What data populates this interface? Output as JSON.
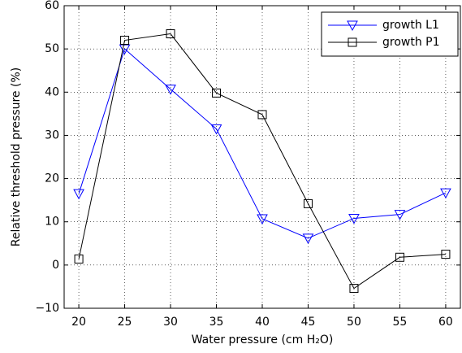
{
  "chart_data": {
    "type": "line",
    "x_label": "Water pressure (cm H₂O)",
    "y_label": "Relative threshold pressure (%)",
    "x": [
      20,
      25,
      30,
      35,
      40,
      45,
      50,
      55,
      60
    ],
    "series": [
      {
        "name": "growth L1",
        "color": "#0000ff",
        "marker": "triangle-down",
        "values": [
          16.5,
          50,
          40.7,
          31.5,
          10.7,
          6.2,
          10.8,
          11.7,
          16.7
        ]
      },
      {
        "name": "growth P1",
        "color": "#000000",
        "marker": "square",
        "values": [
          1.4,
          52,
          53.5,
          39.8,
          34.8,
          14.2,
          -5.4,
          1.8,
          2.5
        ]
      }
    ],
    "xlim": [
      18.4,
      61.6
    ],
    "xticks": [
      20,
      25,
      30,
      35,
      40,
      45,
      50,
      55,
      60
    ],
    "ylim": [
      -10,
      60
    ],
    "yticks": [
      {
        "value": -10,
        "label": "−10"
      },
      0,
      10,
      20,
      30,
      40,
      50,
      60
    ],
    "grid": true,
    "legend_position": "northeast"
  }
}
